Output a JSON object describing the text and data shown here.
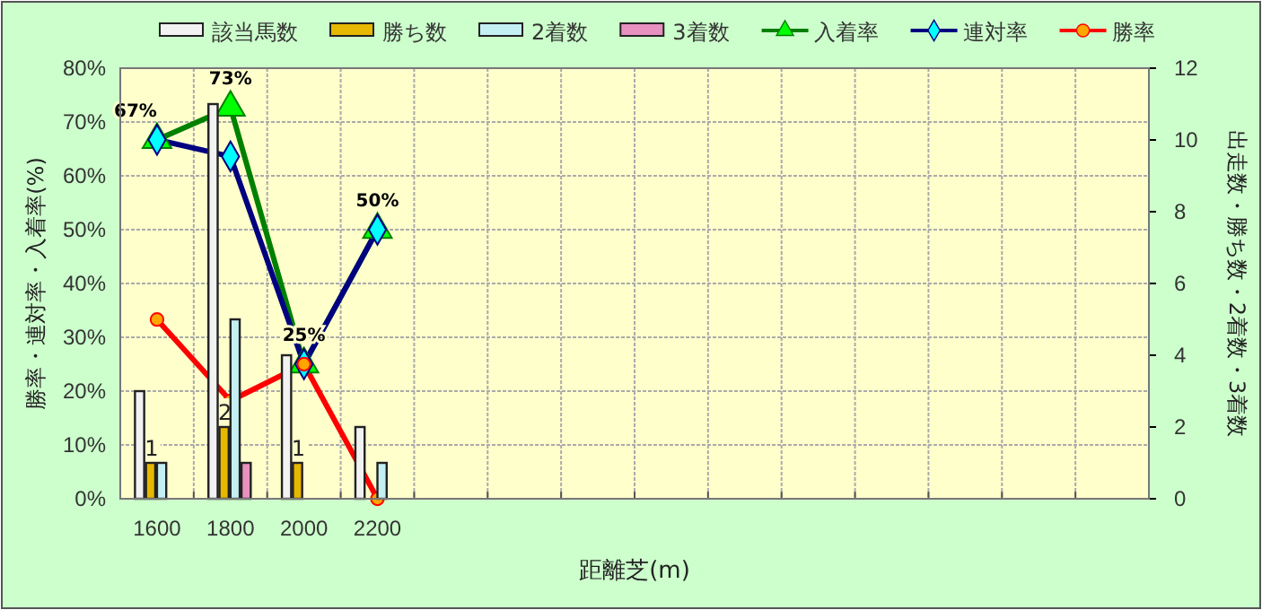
{
  "chart_data": {
    "type": "bar",
    "xlabel": "距離芝(m)",
    "ylabel": "勝率・連対率・入着率(%)",
    "y2label": "出走数・勝ち数・2着数・3着数",
    "categories": [
      "1600",
      "1800",
      "2000",
      "2200",
      null,
      null,
      null,
      null,
      null,
      null,
      null,
      null,
      null,
      null
    ],
    "series": [
      {
        "name": "該当馬数",
        "axis": "y2",
        "color": "#f2f2f2",
        "values": [
          3,
          11,
          4,
          2,
          null,
          null,
          null,
          null,
          null,
          null,
          null,
          null,
          null,
          null
        ]
      },
      {
        "name": "勝ち数",
        "axis": "y2",
        "color": "#e6b800",
        "values": [
          1,
          2,
          1,
          0,
          null,
          null,
          null,
          null,
          null,
          null,
          null,
          null,
          null,
          null
        ],
        "value_labels": [
          "1",
          "2",
          "1",
          null,
          null,
          null,
          null,
          null,
          null,
          null,
          null,
          null,
          null,
          null
        ]
      },
      {
        "name": "2着数",
        "axis": "y2",
        "color": "#c4f0f4",
        "values": [
          1,
          5,
          0,
          1,
          null,
          null,
          null,
          null,
          null,
          null,
          null,
          null,
          null,
          null
        ]
      },
      {
        "name": "3着数",
        "axis": "y2",
        "color": "#e890c0",
        "values": [
          0,
          1,
          0,
          0,
          null,
          null,
          null,
          null,
          null,
          null,
          null,
          null,
          null,
          null
        ]
      },
      {
        "name": "入着率",
        "type": "line",
        "color": "#008000",
        "marker": "triangle",
        "values": [
          66.7,
          72.7,
          25,
          50,
          null,
          null,
          null,
          null,
          null,
          null,
          null,
          null,
          null,
          null
        ],
        "value_labels": [
          "67%",
          "73%",
          "25%",
          "50%",
          null,
          null,
          null,
          null,
          null,
          null,
          null,
          null,
          null,
          null
        ]
      },
      {
        "name": "連対率",
        "type": "line",
        "color": "#000080",
        "marker": "diamond",
        "values": [
          66.7,
          63.6,
          25,
          50,
          null,
          null,
          null,
          null,
          null,
          null,
          null,
          null,
          null,
          null
        ]
      },
      {
        "name": "勝率",
        "type": "line",
        "color": "#ff0000",
        "marker": "circle",
        "values": [
          33.3,
          18.2,
          25,
          0,
          null,
          null,
          null,
          null,
          null,
          null,
          null,
          null,
          null,
          null
        ]
      }
    ],
    "ylim": [
      0,
      80
    ],
    "yticks": [
      {
        "value": 0,
        "label": "0%"
      },
      {
        "value": 10,
        "label": "10%"
      },
      {
        "value": 20,
        "label": "20%"
      },
      {
        "value": 30,
        "label": "30%"
      },
      {
        "value": 40,
        "label": "40%"
      },
      {
        "value": 50,
        "label": "50%"
      },
      {
        "value": 60,
        "label": "60%"
      },
      {
        "value": 70,
        "label": "70%"
      },
      {
        "value": 80,
        "label": "80%"
      }
    ],
    "y2lim": [
      0,
      12
    ],
    "y2ticks": [
      0,
      2,
      4,
      6,
      8,
      10,
      12
    ],
    "grid": true,
    "legend": "top"
  }
}
